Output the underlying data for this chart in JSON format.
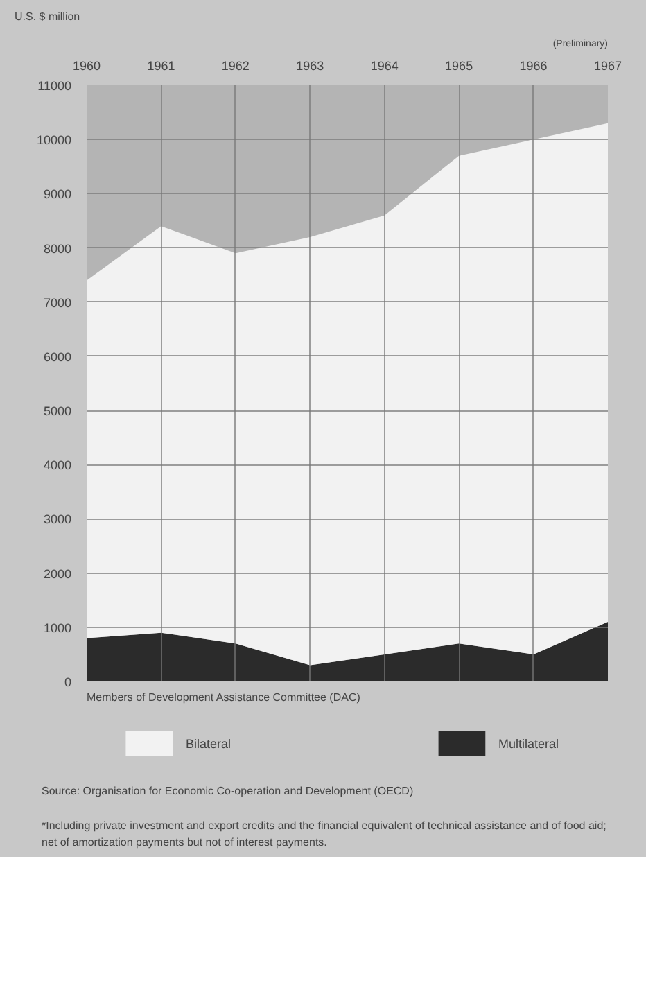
{
  "chart_data": {
    "type": "area",
    "stacked": true,
    "x": [
      1960,
      1961,
      1962,
      1963,
      1964,
      1965,
      1966,
      1967
    ],
    "series": [
      {
        "name": "Multilateral",
        "color": "#2b2b2b",
        "values": [
          800,
          900,
          700,
          300,
          500,
          700,
          500,
          1100
        ]
      },
      {
        "name": "Bilateral",
        "color": "#f2f2f2",
        "values": [
          6600,
          7500,
          7200,
          7900,
          8100,
          9000,
          9500,
          9200
        ]
      }
    ],
    "ylabel": "U.S. $ million",
    "xlabel": "Members of Development Assistance Committee (DAC)",
    "xlim": [
      1960,
      1967
    ],
    "ylim": [
      0,
      11000
    ],
    "xticks": [
      1960,
      1961,
      1962,
      1963,
      1964,
      1965,
      1966,
      1967
    ],
    "yticks": [
      0,
      1000,
      2000,
      3000,
      4000,
      5000,
      6000,
      7000,
      8000,
      9000,
      10000,
      11000
    ],
    "grid": true,
    "legend": "bottom",
    "annotations": [
      "(Preliminary)",
      "Source: Organisation for Economic Co-operation and Development (OECD)",
      "*Including private investment and export credits and the financial equivalent of technical assistance and of food aid; net of amortization payments but not of interest payments."
    ]
  }
}
